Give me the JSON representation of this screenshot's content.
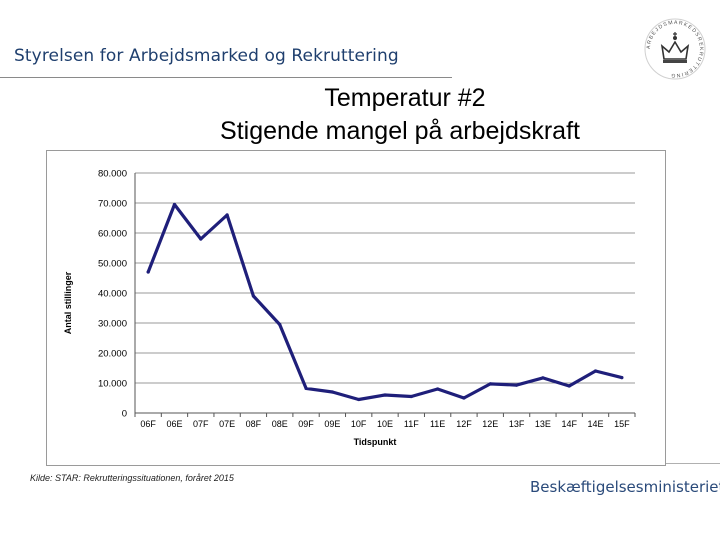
{
  "header": {
    "org_name": "Styrelsen for Arbejdsmarked og Rekruttering",
    "title_line1": "Temperatur #2",
    "title_line2": "Stigende mangel på arbejdskraft"
  },
  "seal": {
    "icon": "crown-seal-icon",
    "text": "ARBEJDSMARKEDSREKRUTTERING"
  },
  "footer": {
    "source": "Kilde: STAR: Rekrutteringssituationen, foråret 2015",
    "ministry": "Beskæftigelsesministeriet"
  },
  "chart_data": {
    "type": "line",
    "title": "",
    "xlabel": "Tidspunkt",
    "ylabel": "Antal stillinger",
    "ylim": [
      0,
      80000
    ],
    "ytick_labels": [
      "0",
      "10.000",
      "20.000",
      "30.000",
      "40.000",
      "50.000",
      "60.000",
      "70.000",
      "80.000"
    ],
    "categories": [
      "06F",
      "06E",
      "07F",
      "07E",
      "08F",
      "08E",
      "09F",
      "09E",
      "10F",
      "10E",
      "11F",
      "11E",
      "12F",
      "12E",
      "13F",
      "13E",
      "14F",
      "14E",
      "15F"
    ],
    "series": [
      {
        "values": [
          47000,
          69500,
          58000,
          66000,
          39000,
          29500,
          8200,
          7000,
          4500,
          6000,
          5500,
          8000,
          5000,
          9700,
          9300,
          11700,
          9000,
          14000,
          11800
        ],
        "color": "#1f1f7a"
      }
    ],
    "grid": true,
    "legend": "none"
  }
}
